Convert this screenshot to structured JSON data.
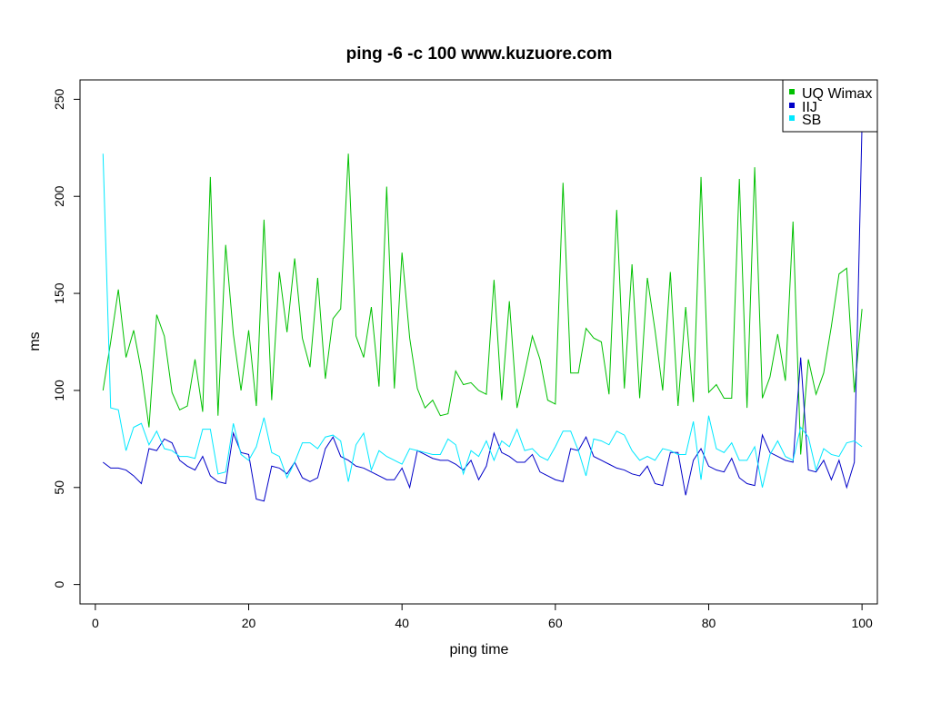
{
  "chart_data": {
    "type": "line",
    "title": "ping -6 -c 100 www.kuzuore.com",
    "xlabel": "ping time",
    "ylabel": "ms",
    "xlim": [
      -2,
      102
    ],
    "ylim": [
      -10,
      260
    ],
    "xticks": [
      0,
      20,
      40,
      60,
      80,
      100
    ],
    "yticks": [
      0,
      50,
      100,
      150,
      200,
      250
    ],
    "xtick_labels": [
      "0",
      "20",
      "40",
      "60",
      "80",
      "100"
    ],
    "ytick_labels": [
      "0",
      "50",
      "100",
      "150",
      "200",
      "250"
    ],
    "grid": false,
    "legend_position": "top-right",
    "x": [
      1,
      2,
      3,
      4,
      5,
      6,
      7,
      8,
      9,
      10,
      11,
      12,
      13,
      14,
      15,
      16,
      17,
      18,
      19,
      20,
      21,
      22,
      23,
      24,
      25,
      26,
      27,
      28,
      29,
      30,
      31,
      32,
      33,
      34,
      35,
      36,
      37,
      38,
      39,
      40,
      41,
      42,
      43,
      44,
      45,
      46,
      47,
      48,
      49,
      50,
      51,
      52,
      53,
      54,
      55,
      56,
      57,
      58,
      59,
      60,
      61,
      62,
      63,
      64,
      65,
      66,
      67,
      68,
      69,
      70,
      71,
      72,
      73,
      74,
      75,
      76,
      77,
      78,
      79,
      80,
      81,
      82,
      83,
      84,
      85,
      86,
      87,
      88,
      89,
      90,
      91,
      92,
      93,
      94,
      95,
      96,
      97,
      98,
      99,
      100
    ],
    "series": [
      {
        "name": "UQ Wimax",
        "color": "#00c000",
        "values": [
          100,
          125,
          152,
          117,
          131,
          110,
          81,
          139,
          128,
          99,
          90,
          92,
          116,
          89,
          210,
          87,
          175,
          129,
          100,
          131,
          92,
          188,
          95,
          161,
          130,
          168,
          127,
          112,
          158,
          106,
          137,
          142,
          222,
          128,
          117,
          143,
          102,
          205,
          101,
          171,
          127,
          101,
          91,
          95,
          87,
          88,
          110,
          103,
          104,
          100,
          98,
          157,
          95,
          146,
          91,
          109,
          128,
          116,
          95,
          93,
          207,
          109,
          109,
          132,
          127,
          125,
          98,
          193,
          101,
          165,
          96,
          158,
          131,
          100,
          161,
          92,
          143,
          94,
          210,
          99,
          103,
          96,
          96,
          209,
          91,
          215,
          96,
          107,
          129,
          105,
          187,
          67,
          116,
          98,
          109,
          133,
          160,
          163,
          99,
          142
        ]
      },
      {
        "name": "IIJ",
        "color": "#0000c8",
        "values": [
          63,
          60,
          60,
          59,
          56,
          52,
          70,
          69,
          75,
          73,
          64,
          61,
          59,
          66,
          56,
          53,
          52,
          78,
          68,
          67,
          44,
          43,
          61,
          60,
          57,
          63,
          55,
          53,
          55,
          70,
          76,
          66,
          64,
          61,
          60,
          58,
          56,
          54,
          54,
          60,
          50,
          69,
          67,
          65,
          64,
          64,
          62,
          59,
          64,
          54,
          61,
          78,
          68,
          66,
          63,
          63,
          67,
          58,
          56,
          54,
          53,
          70,
          69,
          76,
          66,
          64,
          62,
          60,
          59,
          57,
          56,
          61,
          52,
          51,
          68,
          68,
          46,
          64,
          70,
          61,
          59,
          58,
          65,
          55,
          52,
          51,
          77,
          68,
          66,
          64,
          63,
          117,
          59,
          58,
          64,
          54,
          64,
          50,
          63,
          237
        ]
      },
      {
        "name": "SB",
        "color": "#00e8ff",
        "values": [
          222,
          91,
          90,
          69,
          81,
          83,
          72,
          79,
          70,
          69,
          66,
          66,
          65,
          80,
          80,
          57,
          58,
          83,
          67,
          64,
          71,
          86,
          68,
          66,
          55,
          63,
          73,
          73,
          70,
          76,
          77,
          74,
          53,
          72,
          78,
          59,
          69,
          66,
          64,
          62,
          70,
          69,
          68,
          67,
          67,
          75,
          72,
          57,
          69,
          66,
          74,
          64,
          74,
          71,
          80,
          69,
          70,
          66,
          64,
          71,
          79,
          79,
          69,
          56,
          75,
          74,
          72,
          79,
          77,
          69,
          64,
          66,
          64,
          70,
          69,
          67,
          67,
          84,
          54,
          87,
          70,
          68,
          73,
          64,
          64,
          71,
          50,
          67,
          74,
          66,
          64,
          81,
          76,
          59,
          70,
          67,
          66,
          73,
          74,
          71
        ]
      }
    ]
  }
}
